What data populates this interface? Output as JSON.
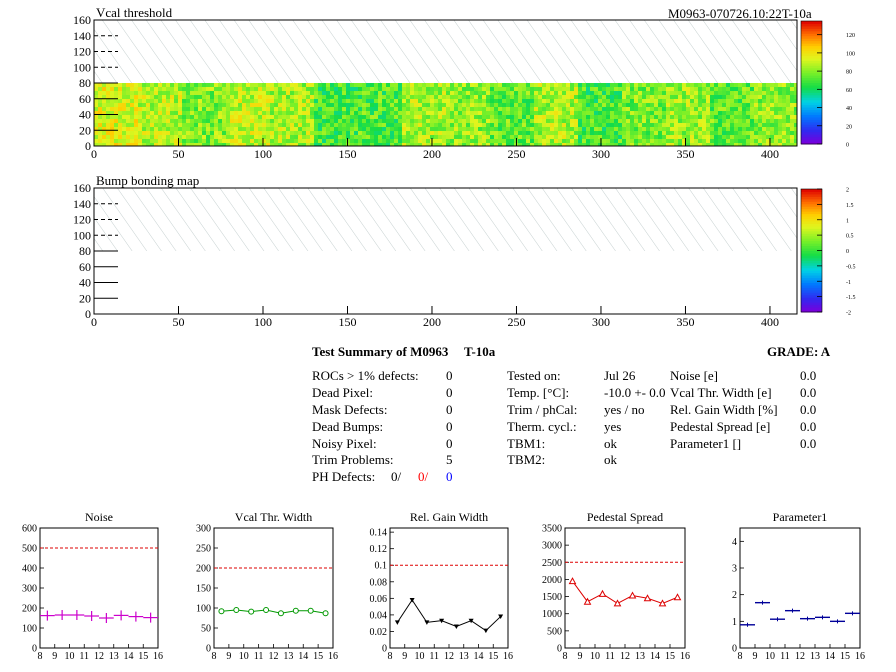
{
  "module_id": "M0963-070726.10:22T-10a",
  "chart_data": [
    {
      "type": "heatmap",
      "title": "Vcal threshold",
      "x_ticks": [
        0,
        50,
        100,
        150,
        200,
        250,
        300,
        350,
        400
      ],
      "y_ticks": [
        0,
        20,
        40,
        60,
        80,
        100,
        120,
        140,
        160
      ],
      "xlim": [
        0,
        416
      ],
      "ylim": [
        0,
        160
      ],
      "data_rows": 80,
      "colorbar_ticks": [
        "0",
        "20",
        "40",
        "60",
        "80",
        "100",
        "120"
      ],
      "colorbar_range": [
        0,
        135
      ],
      "roc_column_means": [
        95,
        88,
        80,
        90,
        86,
        70,
        72,
        85,
        82,
        75,
        86,
        70,
        78,
        84,
        74,
        82
      ]
    },
    {
      "type": "heatmap",
      "title": "Bump bonding map",
      "x_ticks": [
        0,
        50,
        100,
        150,
        200,
        250,
        300,
        350,
        400
      ],
      "y_ticks": [
        0,
        20,
        40,
        60,
        80,
        100,
        120,
        140,
        160
      ],
      "xlim": [
        0,
        416
      ],
      "ylim": [
        0,
        160
      ],
      "data_rows": 80,
      "colorbar_ticks": [
        "2",
        "1.5",
        "1",
        "0.5",
        "0",
        "-0.5",
        "-1",
        "-1.5",
        "-2"
      ],
      "colorbar_range": [
        -2,
        2
      ]
    },
    {
      "type": "line",
      "title": "Noise",
      "x": [
        8,
        9,
        10,
        11,
        12,
        13,
        14,
        15,
        16
      ],
      "x_ticks": [
        "8",
        "9",
        "10",
        "11",
        "12",
        "13",
        "14",
        "15",
        "16"
      ],
      "y_ticks": [
        "0",
        "100",
        "200",
        "300",
        "400",
        "500",
        "600"
      ],
      "ylim": [
        0,
        600
      ],
      "points": [
        [
          8.5,
          162
        ],
        [
          9.5,
          165
        ],
        [
          10.5,
          165
        ],
        [
          11.5,
          160
        ],
        [
          12.5,
          150
        ],
        [
          13.5,
          163
        ],
        [
          14.5,
          157
        ],
        [
          15.5,
          152
        ]
      ],
      "reference": 500,
      "color": "#cc00cc",
      "marker": "cross",
      "connect": false
    },
    {
      "type": "line",
      "title": "Vcal Thr. Width",
      "x": [
        8,
        9,
        10,
        11,
        12,
        13,
        14,
        15,
        16
      ],
      "x_ticks": [
        "8",
        "9",
        "10",
        "11",
        "12",
        "13",
        "14",
        "15",
        "16"
      ],
      "y_ticks": [
        "0",
        "50",
        "100",
        "150",
        "200",
        "250",
        "300"
      ],
      "ylim": [
        0,
        300
      ],
      "points": [
        [
          8.5,
          92
        ],
        [
          9.5,
          95
        ],
        [
          10.5,
          91
        ],
        [
          11.5,
          95
        ],
        [
          12.5,
          87
        ],
        [
          13.5,
          93
        ],
        [
          14.5,
          93
        ],
        [
          15.5,
          87
        ]
      ],
      "reference": 200,
      "color": "#009900",
      "marker": "circle",
      "connect": true
    },
    {
      "type": "line",
      "title": "Rel. Gain Width",
      "x": [
        8,
        9,
        10,
        11,
        12,
        13,
        14,
        15,
        16
      ],
      "x_ticks": [
        "8",
        "9",
        "10",
        "11",
        "12",
        "13",
        "14",
        "15",
        "16"
      ],
      "y_ticks": [
        "0",
        "0.02",
        "0.04",
        "0.06",
        "0.08",
        "0.1",
        "0.12",
        "0.14"
      ],
      "ylim": [
        0,
        0.145
      ],
      "points": [
        [
          8.5,
          0.031
        ],
        [
          9.5,
          0.058
        ],
        [
          10.5,
          0.031
        ],
        [
          11.5,
          0.033
        ],
        [
          12.5,
          0.026
        ],
        [
          13.5,
          0.033
        ],
        [
          14.5,
          0.021
        ],
        [
          15.5,
          0.038
        ]
      ],
      "reference": 0.1,
      "color": "#000000",
      "marker": "triangle-down",
      "connect": true
    },
    {
      "type": "line",
      "title": "Pedestal Spread",
      "x": [
        8,
        9,
        10,
        11,
        12,
        13,
        14,
        15,
        16
      ],
      "x_ticks": [
        "8",
        "9",
        "10",
        "11",
        "12",
        "13",
        "14",
        "15",
        "16"
      ],
      "y_ticks": [
        "0",
        "500",
        "1000",
        "1500",
        "2000",
        "2500",
        "3000",
        "3500"
      ],
      "ylim": [
        0,
        3500
      ],
      "points": [
        [
          8.5,
          1950
        ],
        [
          9.5,
          1350
        ],
        [
          10.5,
          1580
        ],
        [
          11.5,
          1300
        ],
        [
          12.5,
          1530
        ],
        [
          13.5,
          1450
        ],
        [
          14.5,
          1300
        ],
        [
          15.5,
          1480
        ]
      ],
      "reference": 2500,
      "color": "#dd0000",
      "marker": "triangle-up",
      "connect": true
    },
    {
      "type": "scatter",
      "title": "Parameter1",
      "x": [
        8,
        9,
        10,
        11,
        12,
        13,
        14,
        15,
        16
      ],
      "x_ticks": [
        "8",
        "9",
        "10",
        "11",
        "12",
        "13",
        "14",
        "15",
        "16"
      ],
      "y_ticks": [
        "0",
        "1",
        "2",
        "3",
        "4"
      ],
      "ylim": [
        0,
        4.5
      ],
      "points": [
        [
          8.5,
          0.87
        ],
        [
          9.5,
          1.7
        ],
        [
          10.5,
          1.08
        ],
        [
          11.5,
          1.4
        ],
        [
          12.5,
          1.1
        ],
        [
          13.5,
          1.15
        ],
        [
          14.5,
          1.0
        ],
        [
          15.5,
          1.3
        ]
      ],
      "color": "#000099",
      "marker": "dash",
      "connect": false
    }
  ],
  "summary": {
    "title": "Test Summary of M0963",
    "subtitle": "T-10a",
    "grade": "GRADE:  A",
    "left": [
      {
        "label": "ROCs > 1% defects:",
        "value": "0"
      },
      {
        "label": "Dead Pixel:",
        "value": "0"
      },
      {
        "label": "Mask Defects:",
        "value": "0"
      },
      {
        "label": "Dead Bumps:",
        "value": "0"
      },
      {
        "label": "Noisy Pixel:",
        "value": "0"
      },
      {
        "label": "Trim Problems:",
        "value": "5"
      }
    ],
    "ph_defects_label": "PH Defects:",
    "ph_defects": [
      {
        "value": "0/",
        "color": "#000000"
      },
      {
        "value": "0/",
        "color": "#ff0000"
      },
      {
        "value": "0",
        "color": "#0000ff"
      }
    ],
    "middle": [
      {
        "label": "Tested on:",
        "value": "Jul 26"
      },
      {
        "label": "Temp. [°C]:",
        "value": "-10.0 +- 0.0"
      },
      {
        "label": "Trim / phCal:",
        "value": "yes / no"
      },
      {
        "label": "Therm. cycl.:",
        "value": "yes"
      },
      {
        "label": "TBM1:",
        "value": "ok"
      },
      {
        "label": "TBM2:",
        "value": "ok"
      }
    ],
    "right": [
      {
        "label": "Noise [e]",
        "value": "0.0"
      },
      {
        "label": "Vcal Thr. Width [e]",
        "value": "0.0"
      },
      {
        "label": "Rel. Gain Width [%]",
        "value": "0.0"
      },
      {
        "label": "Pedestal Spread [e]",
        "value": "0.0"
      },
      {
        "label": "Parameter1 []",
        "value": "0.0"
      }
    ]
  }
}
